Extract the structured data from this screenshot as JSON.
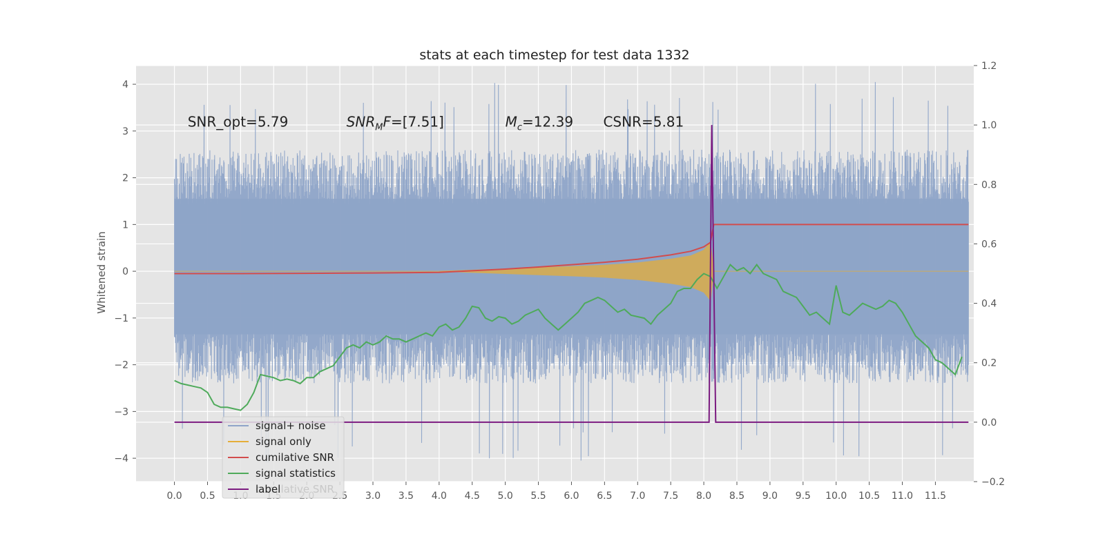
{
  "chart_data": {
    "type": "line",
    "title": "stats at each timestep for test data 1332",
    "ylabel": "Whitened strain",
    "xlabel": "",
    "xlim": [
      -0.58,
      12.08
    ],
    "ylim": [
      -4.5,
      4.4
    ],
    "y2lim": [
      -0.2,
      1.2
    ],
    "x_ticks": [
      0.0,
      0.5,
      1.0,
      1.5,
      2.0,
      2.5,
      3.0,
      3.5,
      4.0,
      4.5,
      5.0,
      5.5,
      6.0,
      6.5,
      7.0,
      7.5,
      8.0,
      8.5,
      9.0,
      9.5,
      10.0,
      10.5,
      11.0,
      11.5
    ],
    "x_tick_labels": [
      "0.0",
      "0.5",
      "1.0",
      "1.5",
      "2.0",
      "2.5",
      "3.0",
      "3.5",
      "4.0",
      "4.5",
      "5.0",
      "5.5",
      "6.0",
      "6.5",
      "7.0",
      "7.5",
      "8.0",
      "8.5",
      "9.0",
      "9.5",
      "10.0",
      "10.5",
      "11.0",
      "11.5"
    ],
    "y_ticks": [
      4,
      3,
      2,
      1,
      0,
      -1,
      -2,
      -3,
      -4
    ],
    "y_tick_labels": [
      "4",
      "3",
      "2",
      "1",
      "0",
      "−1",
      "−2",
      "−3",
      "−4"
    ],
    "y2_ticks": [
      1.2,
      1.0,
      0.8,
      0.6,
      0.4,
      0.2,
      0.0,
      -0.2
    ],
    "y2_tick_labels": [
      "1.2",
      "1.0",
      "0.8",
      "0.6",
      "0.4",
      "0.2",
      "0.0",
      "−0.2"
    ],
    "grid": true,
    "legend_placement": "lower-left",
    "annotations": [
      {
        "text": "SNR_opt=5.79",
        "x": 0.2,
        "y": 3.2
      },
      {
        "text": "SNR_MF=[7.51]",
        "x": 2.6,
        "y": 3.2
      },
      {
        "text": "M_c=12.39",
        "x": 5.0,
        "y": 3.2
      },
      {
        "text": "CSNR=5.81",
        "x": 6.48,
        "y": 3.2
      }
    ],
    "annotation_parts": {
      "snr_mf_main": "SNR",
      "snr_mf_sub": "M",
      "snr_mf_rest": "F=[7.51]",
      "mc_main": "M",
      "mc_sub": "c",
      "mc_rest": "=12.39"
    },
    "series": [
      {
        "name": "signal+ noise",
        "axis": "left",
        "color": "#8ea4c8",
        "x_range": [
          0.0,
          12.0
        ],
        "envelope_upper": 2.6,
        "envelope_lower": -2.4,
        "extreme_max": 4.05,
        "extreme_min": -4.1
      },
      {
        "name": "signal only",
        "axis": "left",
        "color": "#e5ae38",
        "envelope": {
          "x": [
            0.0,
            4.0,
            5.0,
            6.0,
            6.5,
            7.0,
            7.5,
            7.8,
            8.0,
            8.1,
            8.15,
            12.0
          ],
          "amp": [
            0.0,
            0.0,
            0.05,
            0.1,
            0.13,
            0.18,
            0.26,
            0.33,
            0.45,
            0.62,
            0.0,
            0.0
          ]
        }
      },
      {
        "name": "cumilative SNR",
        "axis": "right",
        "color": "#d24c4c",
        "x": [
          0.0,
          1.0,
          2.0,
          3.0,
          4.0,
          5.0,
          5.5,
          6.0,
          6.5,
          7.0,
          7.5,
          7.8,
          8.0,
          8.1,
          8.15,
          12.0
        ],
        "y": [
          0.5,
          0.5,
          0.501,
          0.502,
          0.504,
          0.515,
          0.522,
          0.53,
          0.538,
          0.548,
          0.563,
          0.575,
          0.59,
          0.605,
          0.665,
          0.665
        ]
      },
      {
        "name": "signal statistics",
        "axis": "right",
        "color": "#4eaa5a",
        "x": [
          0.0,
          0.1,
          0.2,
          0.3,
          0.4,
          0.5,
          0.6,
          0.7,
          0.8,
          0.9,
          1.0,
          1.1,
          1.2,
          1.3,
          1.4,
          1.5,
          1.6,
          1.7,
          1.8,
          1.9,
          2.0,
          2.1,
          2.2,
          2.3,
          2.4,
          2.5,
          2.6,
          2.7,
          2.8,
          2.9,
          3.0,
          3.1,
          3.2,
          3.3,
          3.4,
          3.5,
          3.6,
          3.7,
          3.8,
          3.9,
          4.0,
          4.1,
          4.2,
          4.3,
          4.4,
          4.5,
          4.6,
          4.7,
          4.8,
          4.9,
          5.0,
          5.1,
          5.2,
          5.3,
          5.4,
          5.5,
          5.6,
          5.7,
          5.8,
          5.9,
          6.0,
          6.1,
          6.2,
          6.3,
          6.4,
          6.5,
          6.6,
          6.7,
          6.8,
          6.9,
          7.0,
          7.1,
          7.2,
          7.3,
          7.4,
          7.5,
          7.6,
          7.7,
          7.8,
          7.9,
          8.0,
          8.1,
          8.2,
          8.3,
          8.4,
          8.5,
          8.6,
          8.7,
          8.8,
          8.9,
          9.0,
          9.1,
          9.2,
          9.3,
          9.4,
          9.5,
          9.6,
          9.7,
          9.8,
          9.9,
          10.0,
          10.1,
          10.2,
          10.3,
          10.4,
          10.5,
          10.6,
          10.7,
          10.8,
          10.9,
          11.0,
          11.1,
          11.2,
          11.3,
          11.4,
          11.5,
          11.6,
          11.7,
          11.8,
          11.9
        ],
        "y": [
          0.14,
          0.13,
          0.125,
          0.12,
          0.115,
          0.1,
          0.06,
          0.05,
          0.05,
          0.045,
          0.04,
          0.06,
          0.1,
          0.16,
          0.155,
          0.15,
          0.14,
          0.145,
          0.14,
          0.13,
          0.15,
          0.15,
          0.17,
          0.18,
          0.19,
          0.22,
          0.25,
          0.26,
          0.25,
          0.27,
          0.26,
          0.27,
          0.29,
          0.28,
          0.28,
          0.27,
          0.28,
          0.29,
          0.3,
          0.29,
          0.32,
          0.33,
          0.31,
          0.32,
          0.35,
          0.39,
          0.385,
          0.35,
          0.34,
          0.355,
          0.35,
          0.33,
          0.34,
          0.36,
          0.37,
          0.38,
          0.35,
          0.33,
          0.31,
          0.33,
          0.35,
          0.37,
          0.4,
          0.41,
          0.42,
          0.41,
          0.39,
          0.37,
          0.38,
          0.36,
          0.355,
          0.35,
          0.33,
          0.36,
          0.38,
          0.4,
          0.44,
          0.45,
          0.45,
          0.48,
          0.5,
          0.49,
          0.45,
          0.49,
          0.53,
          0.51,
          0.52,
          0.5,
          0.53,
          0.5,
          0.49,
          0.48,
          0.44,
          0.43,
          0.42,
          0.39,
          0.36,
          0.37,
          0.35,
          0.33,
          0.46,
          0.37,
          0.36,
          0.38,
          0.4,
          0.39,
          0.38,
          0.39,
          0.41,
          0.4,
          0.37,
          0.33,
          0.29,
          0.27,
          0.25,
          0.21,
          0.2,
          0.18,
          0.16,
          0.22
        ]
      },
      {
        "name": "label",
        "axis": "right",
        "color": "#7b1a80",
        "x": [
          0.0,
          8.08,
          8.12,
          8.18,
          12.0
        ],
        "y": [
          0.0,
          0.0,
          1.0,
          0.0,
          0.0
        ]
      }
    ],
    "legend_entries": [
      "signal+ noise",
      "signal only",
      "cumilative SNR",
      "signal statistics",
      "label"
    ],
    "legend_overlap_text": "cumilative SNR"
  }
}
